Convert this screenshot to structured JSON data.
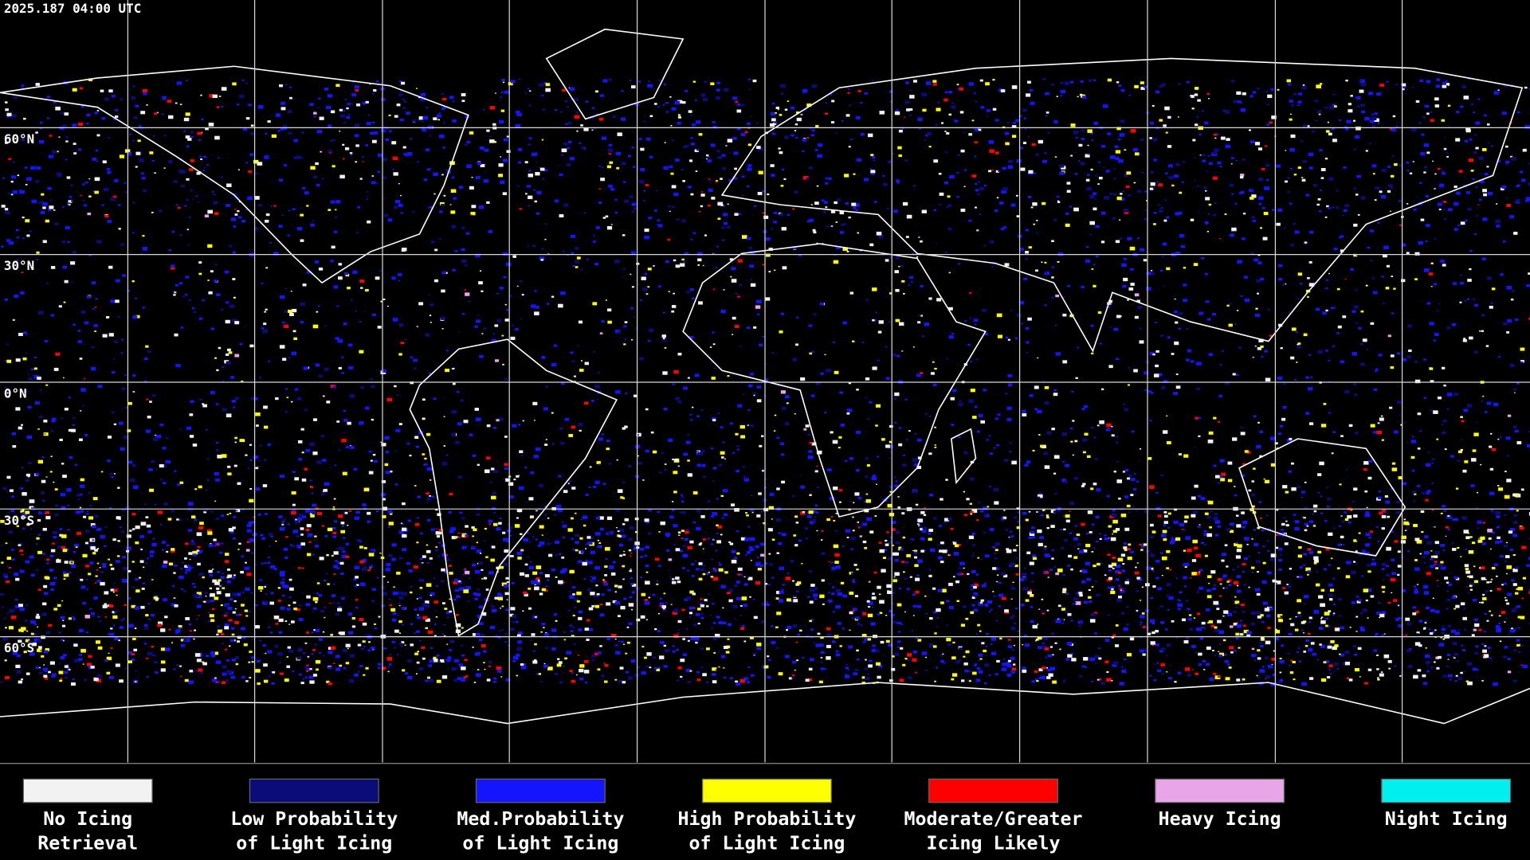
{
  "header": {
    "timestamp": "2025.187 04:00 UTC"
  },
  "latitude_labels": [
    "60°N",
    "30°N",
    "0°N",
    "30°S",
    "60°S"
  ],
  "legend": [
    {
      "color": "#f2f2f2",
      "lines": [
        "No Icing",
        "Retrieval"
      ]
    },
    {
      "color": "#0b0b7a",
      "lines": [
        "Low Probability",
        "of Light Icing"
      ]
    },
    {
      "color": "#1414ff",
      "lines": [
        "Med.Probability",
        "of Light Icing"
      ]
    },
    {
      "color": "#ffff00",
      "lines": [
        "High Probability",
        "of Light Icing"
      ]
    },
    {
      "color": "#ff0000",
      "lines": [
        "Moderate/Greater",
        "Icing Likely"
      ]
    },
    {
      "color": "#e8a6e8",
      "lines": [
        "Heavy Icing"
      ]
    },
    {
      "color": "#00f0f0",
      "lines": [
        "Night Icing"
      ]
    }
  ]
}
